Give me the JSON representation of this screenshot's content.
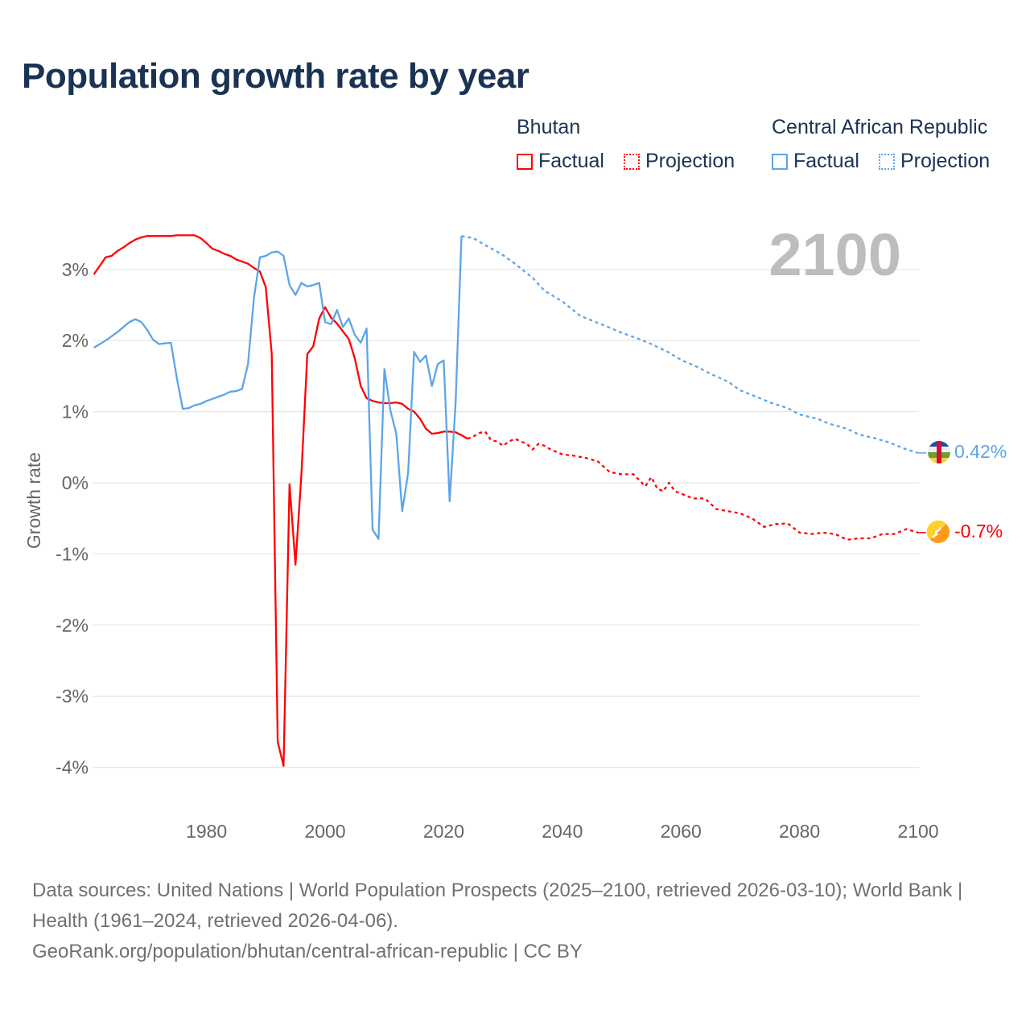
{
  "title": "Population growth rate by year",
  "year_display": "2100",
  "legend": {
    "groups": [
      {
        "name": "Bhutan",
        "color": "#ff0000",
        "factual": "Factual",
        "projection": "Projection"
      },
      {
        "name": "Central African Republic",
        "color": "#5ca5e8",
        "factual": "Factual",
        "projection": "Projection"
      }
    ]
  },
  "chart_data": {
    "type": "line",
    "title": "Population growth rate by year",
    "xlabel": "",
    "ylabel": "Growth rate",
    "xlim": [
      1961,
      2100
    ],
    "ylim": [
      -4.5,
      3.7
    ],
    "x_ticks": [
      1980,
      2000,
      2020,
      2040,
      2060,
      2080,
      2100
    ],
    "y_ticks": [
      3,
      2,
      1,
      0,
      -1,
      -2,
      -3,
      -4
    ],
    "y_tick_labels": [
      "3%",
      "2%",
      "1%",
      "0%",
      "-1%",
      "-2%",
      "-3%",
      "-4%"
    ],
    "grid": true,
    "series": [
      {
        "name": "Bhutan",
        "color": "#ff0000",
        "end_label": "-0.7%",
        "flag": "bhutan-flag",
        "factual": {
          "x": [
            1961,
            1962,
            1963,
            1964,
            1965,
            1966,
            1967,
            1968,
            1969,
            1970,
            1971,
            1972,
            1973,
            1974,
            1975,
            1976,
            1977,
            1978,
            1979,
            1980,
            1981,
            1982,
            1983,
            1984,
            1985,
            1986,
            1987,
            1988,
            1989,
            1990,
            1991,
            1992,
            1993,
            1994,
            1995,
            1996,
            1997,
            1998,
            1999,
            2000,
            2001,
            2002,
            2003,
            2004,
            2005,
            2006,
            2007,
            2008,
            2009,
            2010,
            2011,
            2012,
            2013,
            2014,
            2015,
            2016,
            2017,
            2018,
            2019,
            2020,
            2021,
            2022,
            2023,
            2024
          ],
          "y": [
            2.93,
            3.05,
            3.17,
            3.19,
            3.26,
            3.31,
            3.37,
            3.42,
            3.45,
            3.47,
            3.47,
            3.47,
            3.47,
            3.47,
            3.48,
            3.48,
            3.48,
            3.48,
            3.44,
            3.37,
            3.29,
            3.26,
            3.22,
            3.19,
            3.14,
            3.11,
            3.08,
            3.02,
            2.97,
            2.75,
            1.81,
            -3.64,
            -3.98,
            -0.02,
            -1.15,
            0.11,
            1.81,
            1.92,
            2.31,
            2.47,
            2.32,
            2.24,
            2.13,
            2.02,
            1.75,
            1.36,
            1.19,
            1.15,
            1.13,
            1.12,
            1.12,
            1.13,
            1.11,
            1.04,
            1.0,
            0.9,
            0.76,
            0.69,
            0.7,
            0.72,
            0.72,
            0.71,
            0.67,
            0.62
          ]
        },
        "projection": {
          "x": [
            2024,
            2025,
            2026,
            2027,
            2028,
            2029,
            2030,
            2031,
            2032,
            2033,
            2034,
            2035,
            2036,
            2037,
            2038,
            2040,
            2042,
            2044,
            2046,
            2048,
            2050,
            2052,
            2054,
            2055,
            2056,
            2057,
            2058,
            2059,
            2060,
            2062,
            2064,
            2066,
            2068,
            2070,
            2072,
            2074,
            2076,
            2078,
            2080,
            2082,
            2084,
            2086,
            2088,
            2090,
            2092,
            2094,
            2096,
            2098,
            2100
          ],
          "y": [
            0.62,
            0.65,
            0.7,
            0.72,
            0.6,
            0.58,
            0.52,
            0.58,
            0.62,
            0.58,
            0.55,
            0.47,
            0.55,
            0.52,
            0.47,
            0.4,
            0.38,
            0.35,
            0.3,
            0.15,
            0.12,
            0.12,
            -0.05,
            0.08,
            -0.08,
            -0.12,
            0.0,
            -0.12,
            -0.15,
            -0.22,
            -0.22,
            -0.37,
            -0.4,
            -0.43,
            -0.5,
            -0.62,
            -0.58,
            -0.57,
            -0.7,
            -0.72,
            -0.7,
            -0.72,
            -0.8,
            -0.78,
            -0.78,
            -0.72,
            -0.72,
            -0.65,
            -0.7
          ]
        }
      },
      {
        "name": "Central African Republic",
        "color": "#5ca5e8",
        "end_label": "0.42%",
        "flag": "central-african-republic-flag",
        "factual": {
          "x": [
            1961,
            1962,
            1963,
            1964,
            1965,
            1966,
            1967,
            1968,
            1969,
            1970,
            1971,
            1972,
            1973,
            1974,
            1975,
            1976,
            1977,
            1978,
            1979,
            1980,
            1981,
            1982,
            1983,
            1984,
            1985,
            1986,
            1987,
            1988,
            1989,
            1990,
            1991,
            1992,
            1993,
            1994,
            1995,
            1996,
            1997,
            1998,
            1999,
            2000,
            2001,
            2002,
            2003,
            2004,
            2005,
            2006,
            2007,
            2008,
            2009,
            2010,
            2011,
            2012,
            2013,
            2014,
            2015,
            2016,
            2017,
            2018,
            2019,
            2020,
            2021,
            2022,
            2023
          ],
          "y": [
            1.9,
            1.95,
            2.0,
            2.06,
            2.12,
            2.19,
            2.26,
            2.3,
            2.26,
            2.15,
            2.01,
            1.95,
            1.96,
            1.97,
            1.47,
            1.04,
            1.05,
            1.09,
            1.11,
            1.15,
            1.18,
            1.21,
            1.24,
            1.28,
            1.29,
            1.32,
            1.67,
            2.6,
            3.17,
            3.19,
            3.24,
            3.25,
            3.19,
            2.78,
            2.64,
            2.81,
            2.76,
            2.78,
            2.81,
            2.26,
            2.23,
            2.43,
            2.19,
            2.31,
            2.08,
            1.97,
            2.17,
            -0.66,
            -0.79,
            1.6,
            1.02,
            0.69,
            -0.4,
            0.14,
            1.84,
            1.7,
            1.79,
            1.36,
            1.67,
            1.72,
            -0.26,
            1.13,
            3.47
          ]
        },
        "projection": {
          "x": [
            2023,
            2025,
            2027,
            2029,
            2030,
            2032,
            2035,
            2037,
            2040,
            2043,
            2045,
            2048,
            2050,
            2053,
            2055,
            2058,
            2060,
            2063,
            2065,
            2068,
            2070,
            2073,
            2075,
            2078,
            2080,
            2083,
            2085,
            2088,
            2090,
            2093,
            2095,
            2098,
            2100
          ],
          "y": [
            3.47,
            3.44,
            3.34,
            3.25,
            3.2,
            3.08,
            2.88,
            2.7,
            2.55,
            2.35,
            2.28,
            2.18,
            2.11,
            2.02,
            1.95,
            1.83,
            1.73,
            1.62,
            1.53,
            1.42,
            1.3,
            1.2,
            1.13,
            1.05,
            0.96,
            0.9,
            0.83,
            0.76,
            0.68,
            0.62,
            0.57,
            0.47,
            0.42
          ]
        }
      }
    ]
  },
  "footer": {
    "sources": "Data sources: United Nations | World Population Prospects (2025–2100, retrieved 2026-03-10); World Bank | Health (1961–2024, retrieved 2026-04-06).",
    "credit": "GeoRank.org/population/bhutan/central-african-republic | CC BY"
  }
}
